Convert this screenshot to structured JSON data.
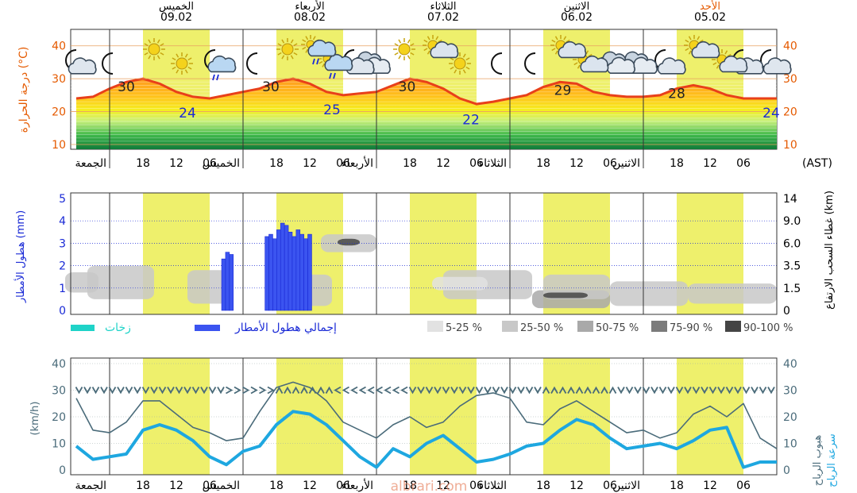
{
  "chart_data": [
    {
      "type": "area",
      "ylabel": "درجة الحرارة (°C)",
      "ylim": [
        10,
        45
      ],
      "yticks": [
        10,
        20,
        30,
        40
      ],
      "time_zone_label": "(AST)",
      "date_headers": [
        {
          "day": "الأحد",
          "date": "05.02",
          "color": "#e55a00"
        },
        {
          "day": "الاثنين",
          "date": "06.02",
          "color": "#000000"
        },
        {
          "day": "الثلاثاء",
          "date": "07.02",
          "color": "#000000"
        },
        {
          "day": "الأربعاء",
          "date": "08.02",
          "color": "#000000"
        },
        {
          "day": "الخميس",
          "date": "09.02",
          "color": "#000000"
        }
      ],
      "x_tick_labels": [
        "06",
        "12",
        "18",
        "الاثنين",
        "06",
        "12",
        "18",
        "الثلاثاء",
        "06",
        "12",
        "18",
        "الأربعاء",
        "06",
        "12",
        "18",
        "الخميس",
        "06",
        "12",
        "18",
        "الجمعة"
      ],
      "x_hours_from_right": [
        6,
        12,
        18,
        24,
        30,
        36,
        42,
        48,
        54,
        60,
        66,
        72,
        78,
        84,
        90,
        96,
        102,
        108,
        114,
        120
      ],
      "temp_series_hours_from_right": [
        0,
        3,
        6,
        9,
        12,
        15,
        18,
        21,
        24,
        27,
        30,
        33,
        36,
        39,
        42,
        45,
        48,
        51,
        54,
        57,
        60,
        63,
        66,
        69,
        72,
        75,
        78,
        81,
        84,
        87,
        90,
        93,
        96,
        99,
        102,
        105,
        108,
        111,
        114,
        117,
        120,
        123,
        126
      ],
      "temp_series_values": [
        24,
        24,
        24,
        25,
        27,
        28,
        27,
        25,
        24.5,
        24.5,
        25,
        26,
        28.5,
        29,
        27.5,
        25,
        24,
        23,
        22.3,
        24,
        27,
        29,
        30,
        28,
        26,
        25.5,
        25,
        26,
        28.5,
        30,
        29,
        27,
        26,
        25,
        24,
        24.5,
        26,
        28.5,
        30,
        29,
        27,
        24.5,
        24
      ],
      "max_min_labels": [
        {
          "hours_from_right": 1,
          "value": "24",
          "kind": "min"
        },
        {
          "hours_from_right": 18,
          "value": "28",
          "kind": "max"
        },
        {
          "hours_from_right": 38.5,
          "value": "29",
          "kind": "max"
        },
        {
          "hours_from_right": 55,
          "value": "22",
          "kind": "min"
        },
        {
          "hours_from_right": 66.5,
          "value": "30",
          "kind": "max"
        },
        {
          "hours_from_right": 80,
          "value": "25",
          "kind": "min"
        },
        {
          "hours_from_right": 91,
          "value": "30",
          "kind": "max"
        },
        {
          "hours_from_right": 106,
          "value": "24",
          "kind": "min"
        },
        {
          "hours_from_right": 117,
          "value": "30",
          "kind": "max"
        }
      ],
      "weather_icons": [
        {
          "hours_from_right": 1,
          "icon": "moon-cloud-icon",
          "row": "low"
        },
        {
          "hours_from_right": 6,
          "icon": "moon-cloud-icon",
          "row": "low"
        },
        {
          "hours_from_right": 9,
          "icon": "sun-cloud-icon",
          "row": "low"
        },
        {
          "hours_from_right": 14,
          "icon": "sun-cloud-icon",
          "row": "high"
        },
        {
          "hours_from_right": 20,
          "icon": "moon-cloud-icon",
          "row": "low"
        },
        {
          "hours_from_right": 25,
          "icon": "cloudy-icon",
          "row": "low"
        },
        {
          "hours_from_right": 29,
          "icon": "cloudy-icon",
          "row": "low"
        },
        {
          "hours_from_right": 34,
          "icon": "sun-cloud-icon",
          "row": "low"
        },
        {
          "hours_from_right": 38,
          "icon": "sun-cloud-icon",
          "row": "high"
        },
        {
          "hours_from_right": 44,
          "icon": "moon-icon",
          "row": "low"
        },
        {
          "hours_from_right": 50,
          "icon": "moon-icon",
          "row": "low"
        },
        {
          "hours_from_right": 57,
          "icon": "sun-icon",
          "row": "low"
        },
        {
          "hours_from_right": 61,
          "icon": "sun-cloud-icon",
          "row": "high"
        },
        {
          "hours_from_right": 67,
          "icon": "sun-icon",
          "row": "high"
        },
        {
          "hours_from_right": 73,
          "icon": "cloudy-icon",
          "row": "low"
        },
        {
          "hours_from_right": 76,
          "icon": "moon-cloud-icon",
          "row": "low"
        },
        {
          "hours_from_right": 80,
          "icon": "sun-rain-icon",
          "row": "low"
        },
        {
          "hours_from_right": 83,
          "icon": "sun-rain-icon",
          "row": "high"
        },
        {
          "hours_from_right": 88,
          "icon": "sun-icon",
          "row": "high"
        },
        {
          "hours_from_right": 94,
          "icon": "moon-icon",
          "row": "low"
        },
        {
          "hours_from_right": 101,
          "icon": "moon-rain-icon",
          "row": "low"
        },
        {
          "hours_from_right": 107,
          "icon": "sun-icon",
          "row": "low"
        },
        {
          "hours_from_right": 112,
          "icon": "sun-icon",
          "row": "high"
        },
        {
          "hours_from_right": 120,
          "icon": "moon-icon",
          "row": "low"
        },
        {
          "hours_from_right": 126,
          "icon": "moon-cloud-icon",
          "row": "low"
        }
      ]
    },
    {
      "type": "bar",
      "ylabel_left": "هطول الأمطار (mm)",
      "ylim_left": [
        0,
        5
      ],
      "yticks_left": [
        0,
        1,
        2,
        3,
        4,
        5
      ],
      "ylabel_right": "غطاء السحب الارتفاع (km)",
      "yticks_right": [
        "0",
        "1.5",
        "3.5",
        "6.0",
        "9.0",
        "14"
      ],
      "bars": [
        {
          "hours_from_right": 99.5,
          "width_hours": 0.7,
          "value": 2.3
        },
        {
          "hours_from_right": 98.8,
          "width_hours": 0.7,
          "value": 2.6
        },
        {
          "hours_from_right": 98.1,
          "width_hours": 0.7,
          "value": 2.5
        },
        {
          "hours_from_right": 91.7,
          "width_hours": 0.7,
          "value": 3.3
        },
        {
          "hours_from_right": 91.0,
          "width_hours": 0.7,
          "value": 3.4
        },
        {
          "hours_from_right": 90.3,
          "width_hours": 0.7,
          "value": 3.2
        },
        {
          "hours_from_right": 89.6,
          "width_hours": 0.7,
          "value": 3.6
        },
        {
          "hours_from_right": 88.9,
          "width_hours": 0.7,
          "value": 3.9
        },
        {
          "hours_from_right": 88.2,
          "width_hours": 0.7,
          "value": 3.8
        },
        {
          "hours_from_right": 87.5,
          "width_hours": 0.7,
          "value": 3.5
        },
        {
          "hours_from_right": 86.8,
          "width_hours": 0.7,
          "value": 3.3
        },
        {
          "hours_from_right": 86.1,
          "width_hours": 0.7,
          "value": 3.6
        },
        {
          "hours_from_right": 85.4,
          "width_hours": 0.7,
          "value": 3.4
        },
        {
          "hours_from_right": 84.7,
          "width_hours": 0.7,
          "value": 3.2
        },
        {
          "hours_from_right": 84.0,
          "width_hours": 0.7,
          "value": 3.4
        }
      ],
      "cloud_patches": [
        {
          "from_hours": 0,
          "to_hours": 16,
          "low": 0.3,
          "high": 1.2,
          "shade": "25-50"
        },
        {
          "from_hours": 16,
          "to_hours": 30,
          "low": 0.2,
          "high": 1.3,
          "shade": "25-50"
        },
        {
          "from_hours": 30,
          "to_hours": 44,
          "low": 0.1,
          "high": 0.9,
          "shade": "50-75"
        },
        {
          "from_hours": 30,
          "to_hours": 42,
          "low": 0.5,
          "high": 1.6,
          "shade": "25-50"
        },
        {
          "from_hours": 34,
          "to_hours": 42,
          "low": 0.55,
          "high": 0.8,
          "shade": "90-100"
        },
        {
          "from_hours": 44,
          "to_hours": 60,
          "low": 0.5,
          "high": 1.8,
          "shade": "25-50"
        },
        {
          "from_hours": 52,
          "to_hours": 62,
          "low": 0.9,
          "high": 1.5,
          "shade": "5-25"
        },
        {
          "from_hours": 72,
          "to_hours": 82,
          "low": 2.6,
          "high": 3.4,
          "shade": "25-50"
        },
        {
          "from_hours": 75,
          "to_hours": 79,
          "low": 2.9,
          "high": 3.2,
          "shade": "90-100"
        },
        {
          "from_hours": 80,
          "to_hours": 86,
          "low": 0.2,
          "high": 1.6,
          "shade": "25-50"
        },
        {
          "from_hours": 98,
          "to_hours": 106,
          "low": 0.3,
          "high": 1.8,
          "shade": "25-50"
        },
        {
          "from_hours": 112,
          "to_hours": 124,
          "low": 0.5,
          "high": 2.0,
          "shade": "25-50"
        },
        {
          "from_hours": 122,
          "to_hours": 128,
          "low": 0.8,
          "high": 1.7,
          "shade": "25-50"
        }
      ],
      "legend": {
        "showers": "زخات",
        "total_precip": "إجمالي هطول الأمطار",
        "cloud_levels": [
          "5-25 %",
          "25-50 %",
          "50-75 %",
          "75-90 %",
          "90-100 %"
        ]
      }
    },
    {
      "type": "line",
      "ylabel_left": "(km/h)",
      "ylim": [
        0,
        40
      ],
      "yticks": [
        0,
        10,
        20,
        30,
        40
      ],
      "ylabel_right_1": "هبوب الرياح",
      "ylabel_right_2": "سرعة الرياح",
      "series": [
        {
          "name": "هبوب الرياح",
          "color": "#4a6b7a",
          "hours_from_right": [
            0,
            3,
            6,
            9,
            12,
            15,
            18,
            21,
            24,
            27,
            30,
            33,
            36,
            39,
            42,
            45,
            48,
            51,
            54,
            57,
            60,
            63,
            66,
            69,
            72,
            75,
            78,
            81,
            84,
            87,
            90,
            93,
            96,
            99,
            102,
            105,
            108,
            111,
            114,
            117,
            120,
            123,
            126
          ],
          "values": [
            8,
            12,
            25,
            20,
            24,
            21,
            14,
            12,
            15,
            14,
            18,
            22,
            26,
            23,
            17,
            18,
            27,
            29,
            28,
            24,
            18,
            16,
            20,
            17,
            12,
            15,
            18,
            26,
            31,
            33,
            31,
            22,
            12,
            11,
            14,
            16,
            21,
            26,
            26,
            18,
            14,
            15,
            27
          ]
        },
        {
          "name": "سرعة الرياح",
          "color": "#1ea7e0",
          "hours_from_right": [
            0,
            3,
            6,
            9,
            12,
            15,
            18,
            21,
            24,
            27,
            30,
            33,
            36,
            39,
            42,
            45,
            48,
            51,
            54,
            57,
            60,
            63,
            66,
            69,
            72,
            75,
            78,
            81,
            84,
            87,
            90,
            93,
            96,
            99,
            102,
            105,
            108,
            111,
            114,
            117,
            120,
            123,
            126
          ],
          "values": [
            3,
            3,
            1,
            16,
            15,
            11,
            8,
            10,
            9,
            8,
            12,
            17,
            19,
            15,
            10,
            9,
            6,
            4,
            3,
            8,
            13,
            10,
            5,
            8,
            1,
            5,
            11,
            17,
            21,
            22,
            17,
            9,
            7,
            2,
            5,
            11,
            15,
            17,
            15,
            6,
            5,
            4,
            9
          ]
        }
      ],
      "wind_direction_arrows": "v",
      "watermark": "albrari.com"
    }
  ]
}
